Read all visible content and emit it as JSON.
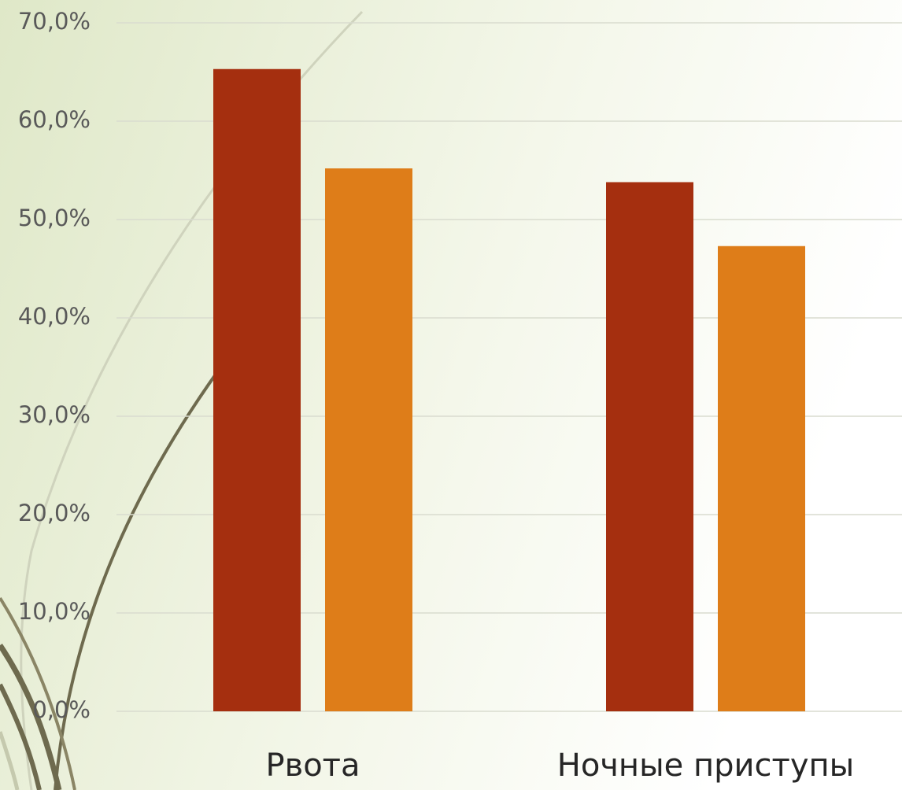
{
  "chart_data": {
    "type": "bar",
    "categories": [
      "Рвота",
      "Ночные приступы"
    ],
    "series": [
      {
        "color": "#a52f0f",
        "values": [
          65.3,
          53.8
        ]
      },
      {
        "color": "#de7d19",
        "values": [
          55.2,
          47.3
        ]
      }
    ],
    "ylim": [
      0,
      70
    ],
    "yticks": [
      {
        "value": 0,
        "label": "0,0%"
      },
      {
        "value": 10,
        "label": "10,0%"
      },
      {
        "value": 20,
        "label": "20,0%"
      },
      {
        "value": 30,
        "label": "30,0%"
      },
      {
        "value": 40,
        "label": "40,0%"
      },
      {
        "value": 50,
        "label": "50,0%"
      },
      {
        "value": 60,
        "label": "60,0%"
      },
      {
        "value": 70,
        "label": "70,0%"
      }
    ],
    "grid": true
  }
}
